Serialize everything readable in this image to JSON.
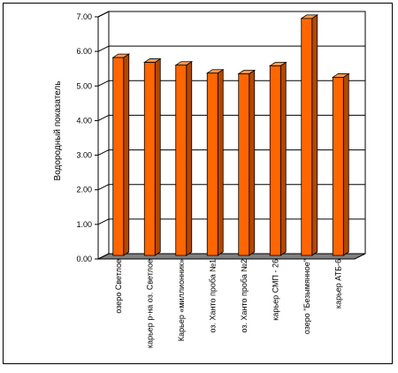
{
  "chart_data": {
    "type": "bar",
    "ylabel": "Водородный показатель",
    "ylim": [
      0,
      7
    ],
    "yticks": [
      "0.00",
      "1.00",
      "2.00",
      "3.00",
      "4.00",
      "5.00",
      "6.00",
      "7.00"
    ],
    "grid": true,
    "categories": [
      "озеро Светлое",
      "карьер р-на оз. Светлое",
      "Карьер «миллионник»",
      "оз. Ханто проба №1",
      "оз. Ханто проба №2",
      "карьер СМП - 26",
      "озеро \"Безымянное\"",
      "карьер АТБ-6"
    ],
    "values": [
      5.72,
      5.58,
      5.5,
      5.27,
      5.25,
      5.48,
      6.85,
      5.15
    ],
    "colors": {
      "bar_front": "#ff6600",
      "bar_side": "#b34700",
      "bar_top": "#ff9a4d",
      "floor": "#808080",
      "wall": "#ffffff",
      "axis": "#000000"
    }
  }
}
